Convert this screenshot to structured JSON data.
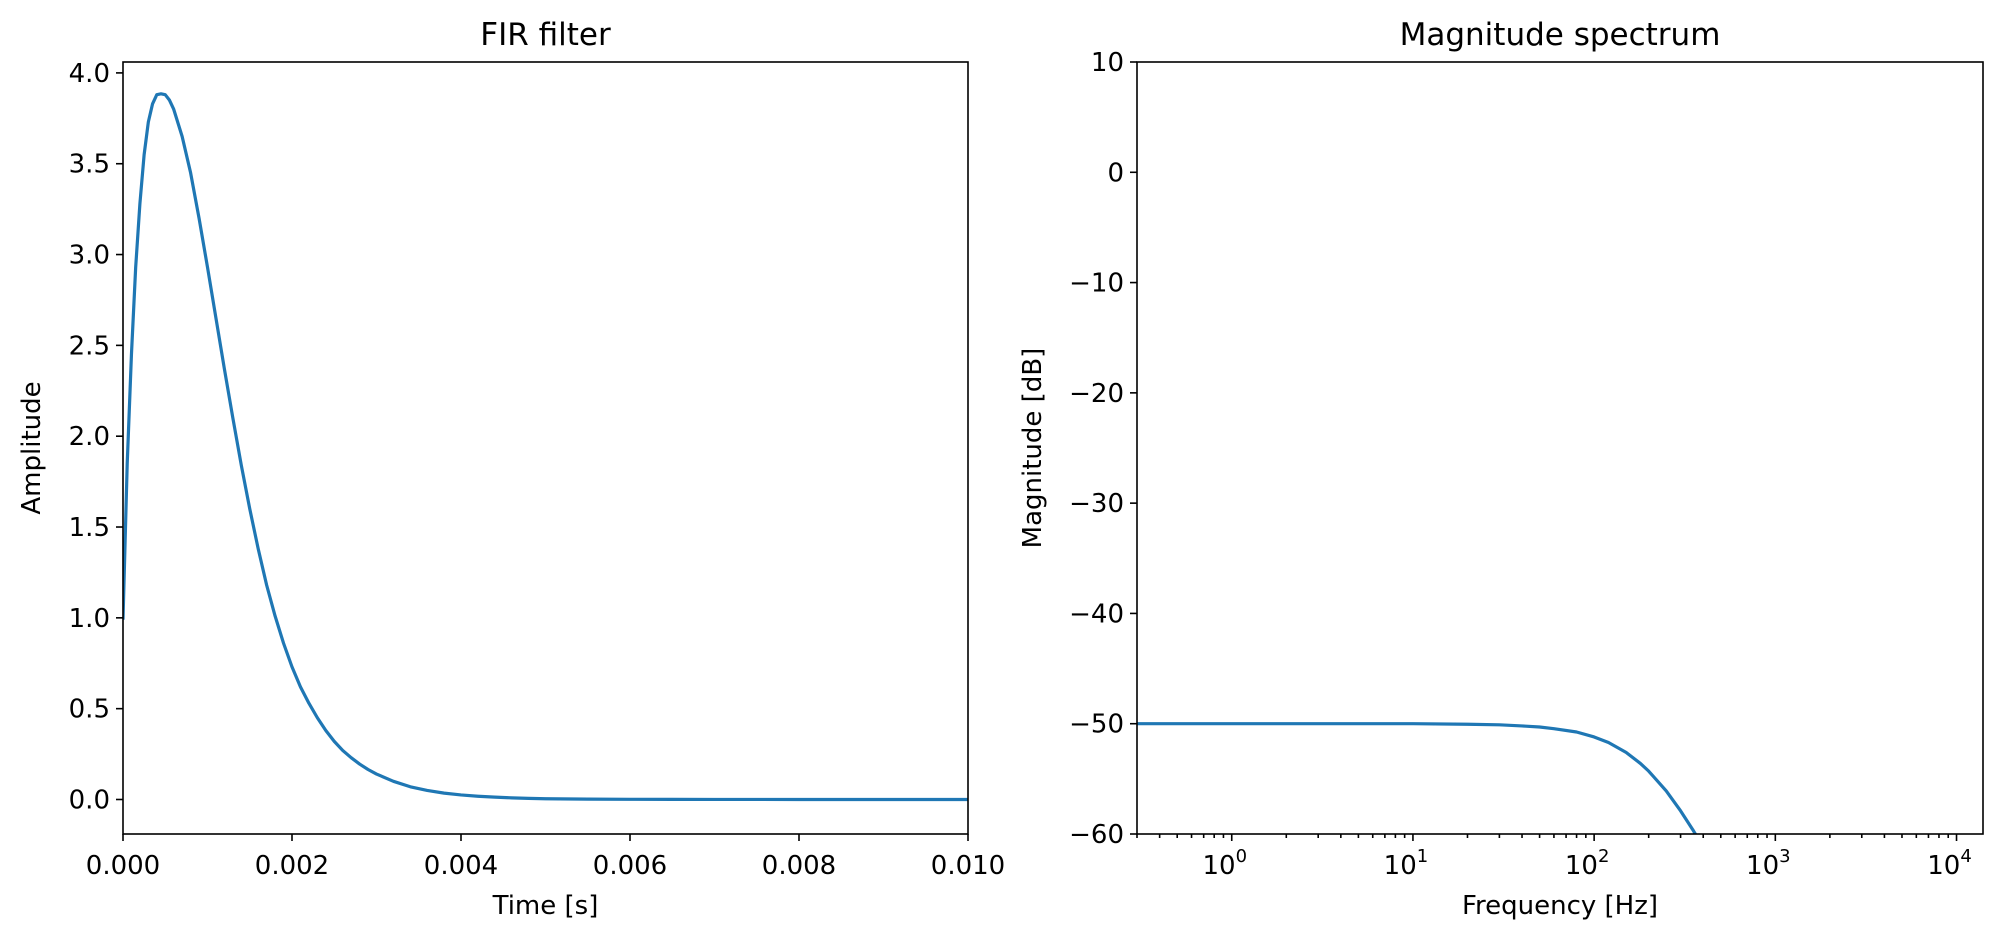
{
  "chart_data": [
    {
      "type": "line",
      "title": "FIR filter",
      "xlabel": "Time [s]",
      "ylabel": "Amplitude",
      "xlim": [
        0.0,
        0.01
      ],
      "ylim": [
        -0.19,
        4.06
      ],
      "x_scale": "linear",
      "xticks": [
        0.0,
        0.002,
        0.004,
        0.006,
        0.008,
        0.01
      ],
      "xtick_labels": [
        "0.000",
        "0.002",
        "0.004",
        "0.006",
        "0.008",
        "0.010"
      ],
      "yticks": [
        0.0,
        0.5,
        1.0,
        1.5,
        2.0,
        2.5,
        3.0,
        3.5,
        4.0
      ],
      "ytick_labels": [
        "0.0",
        "0.5",
        "1.0",
        "1.5",
        "2.0",
        "2.5",
        "3.0",
        "3.5",
        "4.0"
      ],
      "grid": false,
      "color": "#1f77b4",
      "series": [
        {
          "x": [
            0.0,
            5e-05,
            0.0001,
            0.00015,
            0.0002,
            0.00025,
            0.0003,
            0.00035,
            0.0004,
            0.00045,
            0.0005,
            0.00055,
            0.0006,
            0.0007,
            0.0008,
            0.0009,
            0.001,
            0.0011,
            0.0012,
            0.0013,
            0.0014,
            0.0015,
            0.0016,
            0.0017,
            0.0018,
            0.0019,
            0.002,
            0.0021,
            0.0022,
            0.0023,
            0.0024,
            0.0025,
            0.0026,
            0.0027,
            0.0028,
            0.0029,
            0.003,
            0.0032,
            0.0034,
            0.0036,
            0.0038,
            0.004,
            0.0042,
            0.0044,
            0.0046,
            0.0048,
            0.005,
            0.0055,
            0.006,
            0.0065,
            0.007,
            0.008,
            0.009,
            0.01
          ],
          "y": [
            0.99,
            1.85,
            2.45,
            2.93,
            3.28,
            3.55,
            3.73,
            3.83,
            3.88,
            3.885,
            3.88,
            3.85,
            3.8,
            3.65,
            3.45,
            3.2,
            2.93,
            2.65,
            2.37,
            2.1,
            1.84,
            1.6,
            1.38,
            1.18,
            1.01,
            0.86,
            0.73,
            0.62,
            0.53,
            0.45,
            0.38,
            0.32,
            0.27,
            0.23,
            0.195,
            0.165,
            0.14,
            0.1,
            0.07,
            0.05,
            0.035,
            0.025,
            0.018,
            0.013,
            0.009,
            0.006,
            0.004,
            0.002,
            0.001,
            0.0005,
            0.0002,
            0.0001,
            0.0,
            0.0
          ]
        }
      ]
    },
    {
      "type": "line",
      "title": "Magnitude spectrum",
      "xlabel": "Frequency [Hz]",
      "ylabel": "Magnitude [dB]",
      "xlim": [
        0.3,
        14000
      ],
      "ylim": [
        -60,
        10
      ],
      "x_scale": "log",
      "xticks": [
        1,
        10,
        100,
        1000,
        10000
      ],
      "xtick_labels": [
        [
          "10",
          "0"
        ],
        [
          "10",
          "1"
        ],
        [
          "10",
          "2"
        ],
        [
          "10",
          "3"
        ],
        [
          "10",
          "4"
        ]
      ],
      "yticks": [
        10,
        0,
        -10,
        -20,
        -30,
        -40,
        -50,
        -60
      ],
      "ytick_labels": [
        "10",
        "0",
        "−10",
        "−20",
        "−30",
        "−40",
        "−50",
        "−60"
      ],
      "grid": false,
      "color": "#1f77b4",
      "series": [
        {
          "x": [
            0.3,
            1,
            3,
            10,
            20,
            30,
            40,
            50,
            60,
            80,
            100,
            120,
            150,
            180,
            200,
            250,
            300,
            350,
            400
          ],
          "y": [
            -50.0,
            -50.0,
            -50.0,
            -50.0,
            -50.05,
            -50.1,
            -50.2,
            -50.3,
            -50.45,
            -50.75,
            -51.2,
            -51.7,
            -52.6,
            -53.6,
            -54.3,
            -56.1,
            -57.9,
            -59.6,
            -61.2
          ]
        }
      ]
    }
  ]
}
